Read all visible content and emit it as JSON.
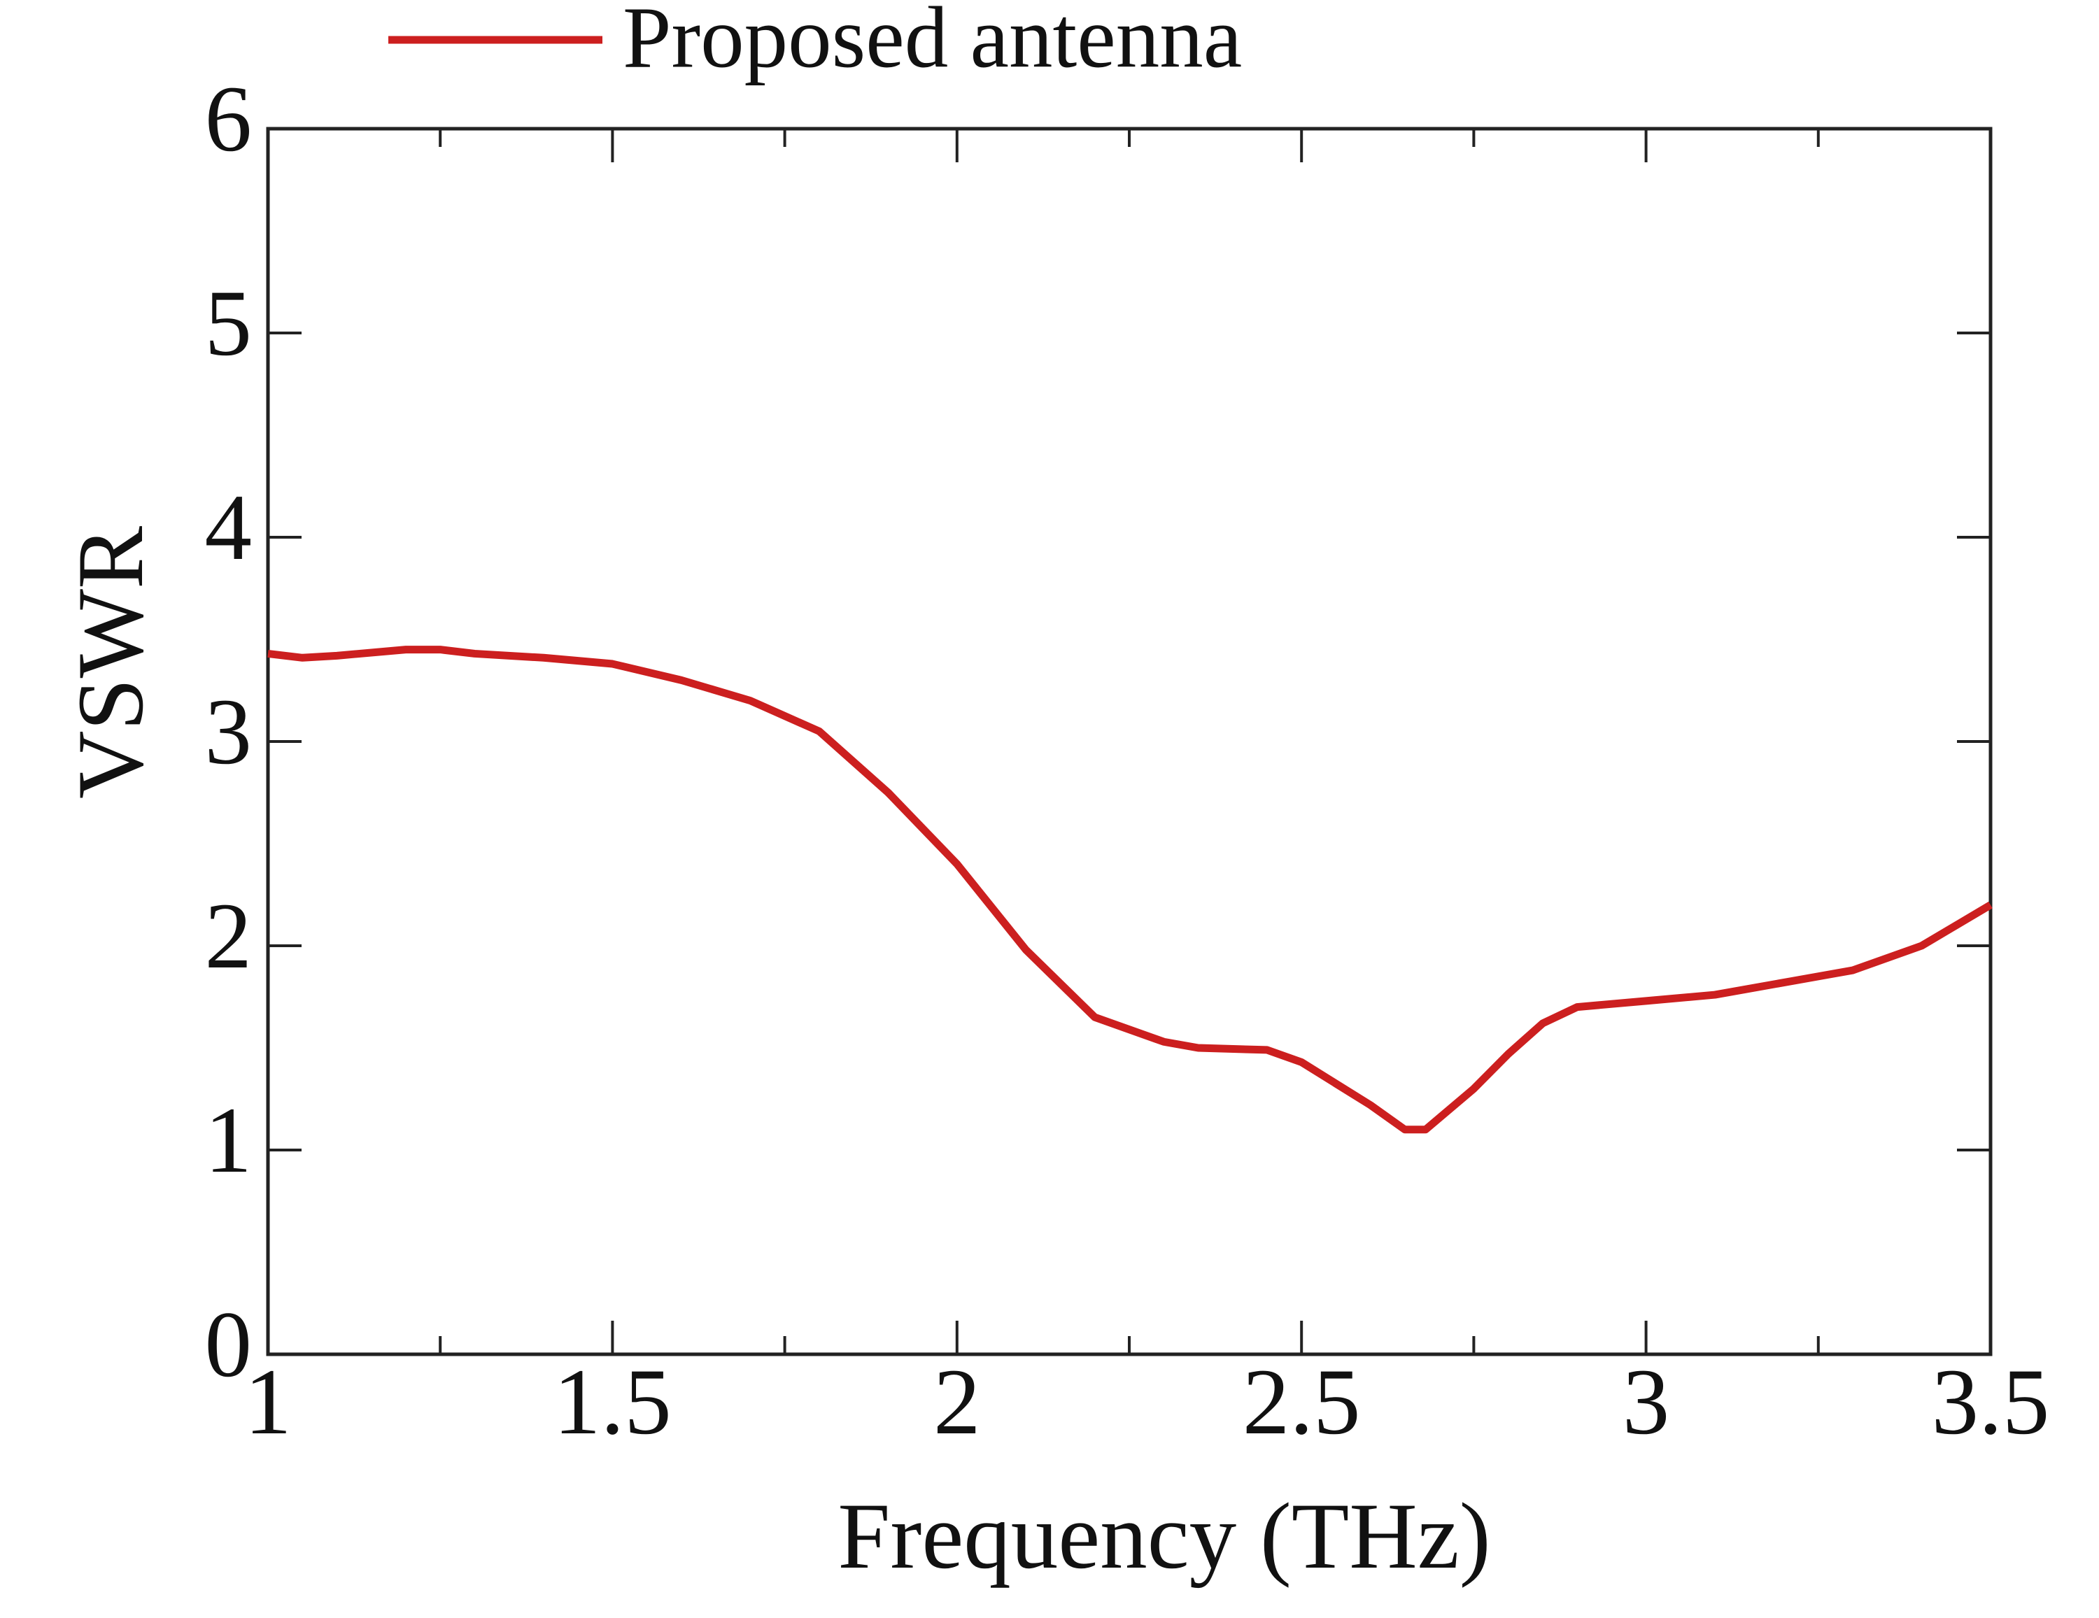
{
  "chart_data": {
    "type": "line",
    "xlabel": "Frequency (THz)",
    "ylabel": "VSWR",
    "x": [
      1.0,
      1.05,
      1.1,
      1.2,
      1.25,
      1.3,
      1.4,
      1.5,
      1.6,
      1.7,
      1.8,
      1.9,
      2.0,
      2.1,
      2.2,
      2.3,
      2.35,
      2.45,
      2.5,
      2.6,
      2.65,
      2.68,
      2.75,
      2.8,
      2.85,
      2.9,
      3.0,
      3.1,
      3.2,
      3.3,
      3.4,
      3.5
    ],
    "series": [
      {
        "name": "Proposed antenna",
        "color": "#cc1f1f",
        "values": [
          3.43,
          3.41,
          3.42,
          3.45,
          3.45,
          3.43,
          3.41,
          3.38,
          3.3,
          3.2,
          3.05,
          2.75,
          2.4,
          1.98,
          1.65,
          1.53,
          1.5,
          1.49,
          1.43,
          1.22,
          1.1,
          1.1,
          1.3,
          1.47,
          1.62,
          1.7,
          1.73,
          1.76,
          1.82,
          1.88,
          2.0,
          2.2
        ]
      }
    ],
    "xlim": [
      1,
      3.5
    ],
    "xticks": [
      1,
      1.5,
      2,
      2.5,
      3,
      3.5
    ],
    "xminorticks": [
      1.25,
      1.75,
      2.25,
      2.75,
      3.25
    ],
    "ylim": [
      0,
      6
    ],
    "yticks": [
      0,
      1,
      2,
      3,
      4,
      5,
      6
    ],
    "legend": "top"
  }
}
